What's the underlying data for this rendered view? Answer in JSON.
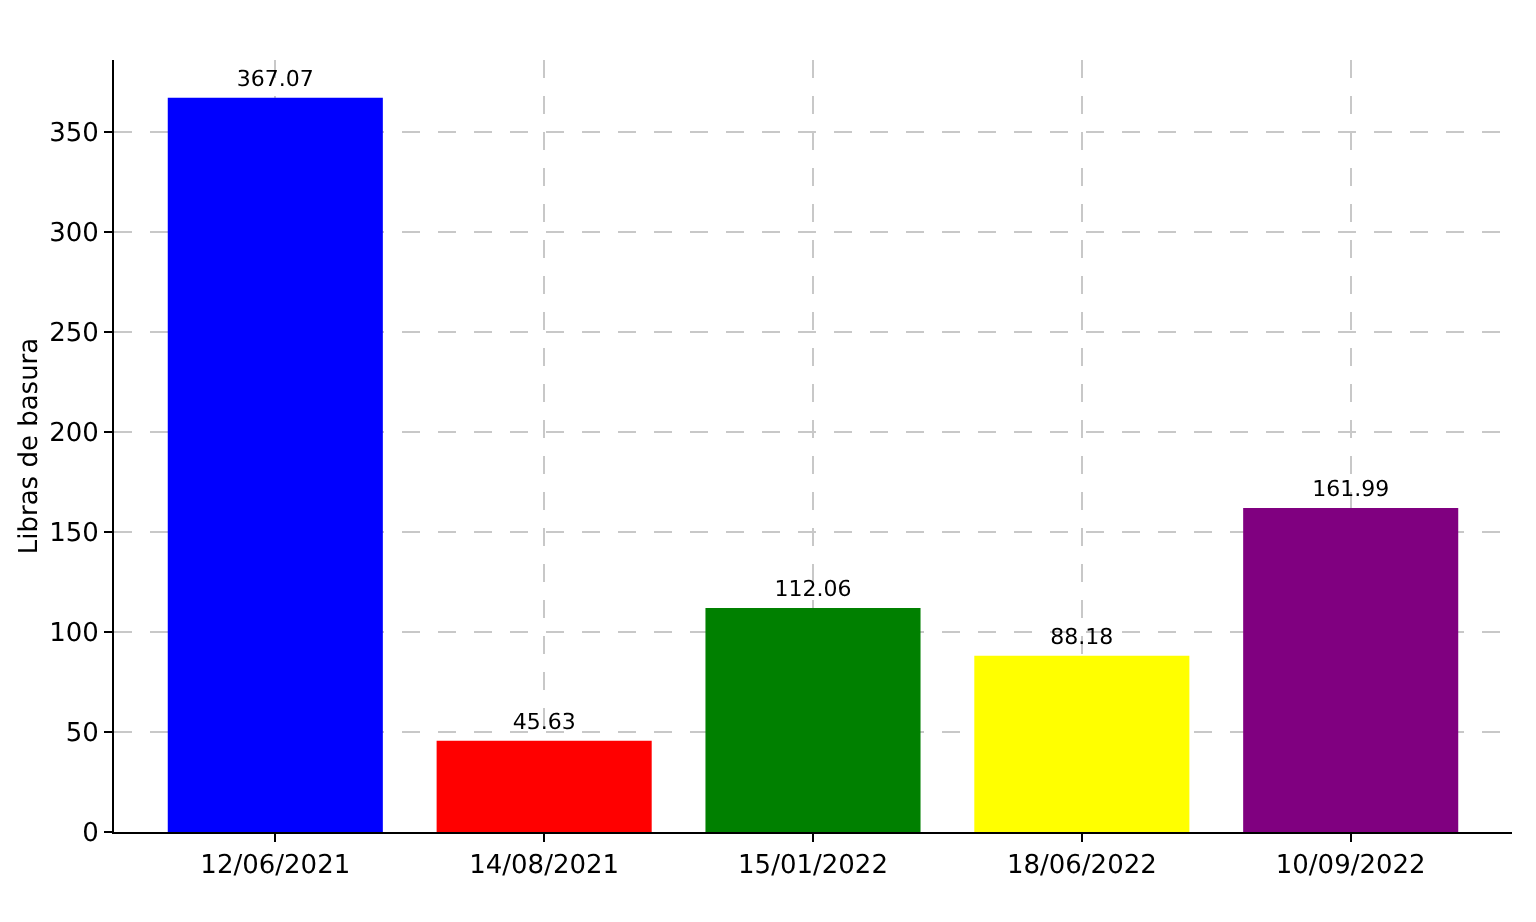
{
  "chart_data": {
    "type": "bar",
    "ylabel": "Libras de basura",
    "categories": [
      "12/06/2021",
      "14/08/2021",
      "15/01/2022",
      "18/06/2022",
      "10/09/2022"
    ],
    "values": [
      367.07,
      45.63,
      112.06,
      88.18,
      161.99
    ],
    "colors": [
      "#0000ff",
      "#ff0000",
      "#008000",
      "#ffff00",
      "#800080"
    ],
    "ylim": [
      0,
      386
    ],
    "yticks": [
      0,
      50,
      100,
      150,
      200,
      250,
      300,
      350
    ],
    "grid": true,
    "data_labels": true
  }
}
